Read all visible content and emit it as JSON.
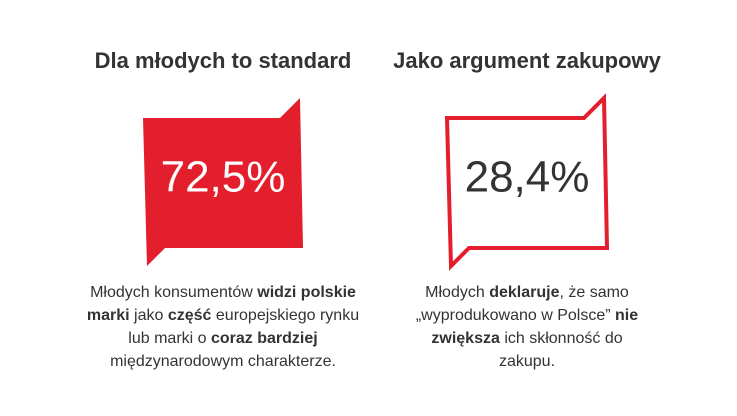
{
  "panels": [
    {
      "title": "Dla młodych to standard",
      "value": "72,5%",
      "filled": true,
      "description": [
        [
          {
            "text": "Młodych konsumentów "
          },
          {
            "text": "widzi polskie",
            "bold": true
          }
        ],
        [
          {
            "text": "marki",
            "bold": true
          },
          {
            "text": " jako "
          },
          {
            "text": "część",
            "bold": true
          },
          {
            "text": " europejskiego rynku"
          }
        ],
        [
          {
            "text": "lub marki o "
          },
          {
            "text": "coraz bardziej",
            "bold": true
          }
        ],
        [
          {
            "text": "międzynarodowym charakterze."
          }
        ]
      ]
    },
    {
      "title": "Jako argument zakupowy",
      "value": "28,4%",
      "filled": false,
      "description": [
        [
          {
            "text": "Młodych "
          },
          {
            "text": "deklaruje",
            "bold": true
          },
          {
            "text": ", że samo"
          }
        ],
        [
          {
            "text": "„wyprodukowano w Polsce” "
          },
          {
            "text": "nie",
            "bold": true
          }
        ],
        [
          {
            "text": "zwiększa",
            "bold": true
          },
          {
            "text": " ich skłonność do"
          }
        ],
        [
          {
            "text": "zakupu."
          }
        ]
      ]
    }
  ]
}
